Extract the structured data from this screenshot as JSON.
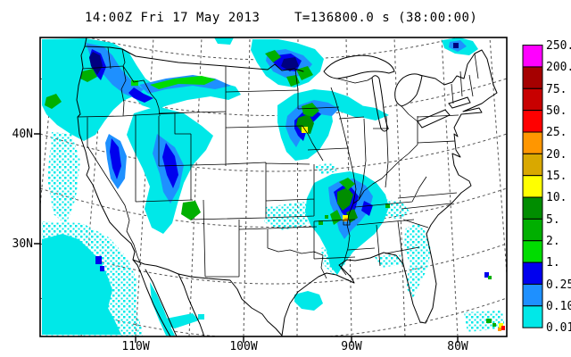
{
  "title": {
    "datetime": "14:00Z Fri 17 May 2013",
    "timer": "T=136800.0 s (38:00:00)"
  },
  "axes": {
    "lat": [
      {
        "label": "40N"
      },
      {
        "label": "30N"
      }
    ],
    "lon": [
      {
        "label": "110W"
      },
      {
        "label": "100W"
      },
      {
        "label": "90W"
      },
      {
        "label": "80W"
      }
    ]
  },
  "colorbar": {
    "labels": [
      "250.",
      "200.",
      "75.",
      "50.",
      "25.",
      "20.",
      "15.",
      "10.",
      "5.",
      "2.",
      "1.",
      "0.25",
      "0.10",
      "0.01"
    ],
    "colors": [
      "#FF00FF",
      "#A50000",
      "#C80000",
      "#FF0000",
      "#FF9600",
      "#D9A800",
      "#FFFF00",
      "#008D00",
      "#00AF00",
      "#00DC00",
      "#0000EE",
      "#1E90FF",
      "#00E8E8"
    ]
  },
  "precip_field": {
    "units_note": "precipitation shading levels match colorbar",
    "layers": [
      {
        "name": "speckle-0.01",
        "fill": "pattern:spk",
        "paths": [
          "M47 248 L92 250 L122 266 L142 288 L154 315 L152 345 L160 372 L160 377 L47 377 Z",
          "M58 148 L80 150 L90 180 L85 222 L74 252 L60 240 L53 200 Z",
          "M298 232 L340 226 L352 238 L345 252 L316 258 L296 249 Z",
          "M360 278 L380 272 L388 296 L374 308 L362 296 Z",
          "M424 222 L450 226 L460 238 L446 246 L427 240 Z",
          "M455 255 L470 250 L479 263 L483 281 L479 301 L470 319 L462 336 L455 321 L459 296 L452 272 Z",
          "M520 350 L563 348 L566 368 L524 372 Z",
          "M420 288 L448 284 L452 296 L428 300 Z",
          "M352 186 L372 182 L378 192 L360 196 Z"
        ]
      },
      {
        "name": "rain-0.01",
        "fill": "#00E8E8",
        "paths": [
          "M47 44 L96 43 L126 48 L144 58 L153 73 L163 88 L173 95 L192 91 L216 87 L242 91 L264 97 L270 106 L256 112 L236 108 L210 112 L188 118 L174 123 L159 118 L149 108 L138 113 L127 123 L117 136 L107 151 L94 158 L79 150 L64 140 L52 128 L47 118 Z",
          "M150 127 L176 119 L206 127 L226 141 L239 152 L231 168 L216 185 L206 205 L199 228 L193 250 L183 262 L170 255 L162 234 L168 209 L160 189 L150 169 L142 151 Z",
          "M283 44 L312 44 L332 48 L353 55 L363 66 L359 80 L346 92 L330 98 L312 95 L298 85 L288 70 L281 56 Z",
          "M311 118 L330 105 L352 100 L372 102 L390 108 L406 118 L413 128 L400 132 L384 126 L371 122 L373 136 L368 152 L358 168 L345 178 L331 180 L321 170 L315 154 L311 137 Z",
          "M392 116 L421 121 L436 129 L421 135 L399 130 Z",
          "M352 205 L372 195 L392 192 L408 196 L422 205 L432 218 L436 232 L430 248 L420 262 L408 272 L396 282 L386 295 L378 308 L370 298 L366 280 L358 265 L348 252 L342 238 L344 222 Z",
          "M495 45 L515 42 L530 46 L536 55 L526 62 L510 60 L498 54 Z",
          "M47 268 L70 262 L88 268 L101 280 L112 292 L120 308 L126 325 L121 345 L129 360 L136 375 L47 375 Z",
          "M330 330 L345 326 L358 330 L362 340 L352 348 L338 346 L330 338 Z",
          "M186 357 L216 351 L223 359 L196 368 L186 365 Z",
          "M168 316 L176 330 L184 348 L190 364 L196 376 L186 376 L178 358 L170 338 Z",
          "M240 42 L262 42 L258 50 L244 49 Z",
          "M222 352 L229 352 L229 358 L222 358 Z"
        ]
      },
      {
        "name": "rain-0.10",
        "fill": "#1E90FF",
        "paths": [
          "M96 48 L116 52 L126 62 L136 78 L149 92 L161 100 L151 110 L139 105 L126 95 L113 80 L101 62 Z",
          "M122 150 L135 158 L142 175 L140 200 L132 212 L124 200 L120 178 L118 160 Z",
          "M156 95 L186 88 L216 84 L241 88 L259 96 L241 100 L216 96 L186 100 L166 105 Z",
          "M176 150 L196 165 L206 185 L201 210 L191 228 L183 215 L179 195 L171 172 Z",
          "M300 58 L320 55 L340 62 L350 72 L340 84 L322 88 L306 80 L298 68 Z",
          "M322 130 L335 118 L352 112 L368 115 L380 122 L372 130 L358 128 L346 135 L339 152 L332 165 L325 155 L320 142 Z",
          "M368 210 L382 202 L396 200 L410 208 L418 220 L414 235 L404 248 L394 258 L386 268 L380 258 L376 242 L370 228 Z",
          "M504 47 L516 45 L523 52 L513 58 L503 53 Z"
        ]
      },
      {
        "name": "rain-0.25",
        "fill": "#0000EE",
        "paths": [
          "M103 55 L113 60 L119 75 L113 90 L104 80 L100 65 Z",
          "M125 155 L133 165 L136 186 L131 201 L126 188 L123 170 Z",
          "M150 98 L161 105 L172 110 L162 115 L150 110 L144 104 Z",
          "M186 160 L196 175 L200 196 L194 211 L187 196 L182 176 Z",
          "M310 62 L326 60 L338 68 L332 80 L316 78 L306 70 Z",
          "M330 135 L340 125 L352 122 L360 128 L352 136 L345 142 L340 158 L334 152 L330 144 Z",
          "M374 215 L384 208 L394 210 L402 220 L398 235 L390 246 L383 238 L378 228 Z",
          "M408 225 L418 230 L414 242 L405 236 Z",
          "M107 287 L114 287 L114 296 L107 296 Z M112 298 L117 298 L117 304 L112 304 Z",
          "M543 305 L548 305 L548 311 L543 311 Z"
        ]
      },
      {
        "name": "rain-core-dark",
        "fill": "#000080",
        "paths": [
          "M104 58 L112 62 L115 74 L109 84 L102 74 L100 64 Z",
          "M318 66 L331 64 L335 74 L325 80 L315 74 Z",
          "M508 48 L514 48 L514 54 L508 54 Z"
        ]
      },
      {
        "name": "rain-5",
        "fill": "#008D00",
        "paths": [
          "M334 132 L346 128 L352 138 L348 150 L338 148 L332 140 Z",
          "M378 215 L389 210 L396 218 L392 230 L384 236 L378 228 Z",
          "M388 238 L397 234 L401 244 L392 250 Z"
        ]
      },
      {
        "name": "rain-2",
        "fill": "#00AF00",
        "paths": [
          "M92 80 L104 77 L109 86 L98 92 L90 88 Z",
          "M52 109 L63 105 L69 114 L58 122 L50 118 Z",
          "M205 227 L219 225 L225 238 L214 247 L203 240 Z",
          "M297 60 L308 56 L315 64 L306 70 Z",
          "M332 78 L345 74 L351 84 L338 90 Z",
          "M321 86 L332 84 L336 93 L326 97 Z",
          "M338 119 L350 115 L358 124 L350 131 L340 128 Z",
          "M380 204 L390 199 L398 206 L390 213 Z",
          "M370 240 L378 235 L383 246 L374 252 Z",
          "M545 357 L551 357 L551 362 L545 362 Z M552 362 L556 362 L556 366 L552 366 Z",
          "M547 309 L551 309 L551 313 L547 313 Z",
          "M432 228 L437 228 L437 233 L432 233 Z M357 247 L362 247 L362 252 L357 252 Z M364 241 L368 241 L368 245 L364 245 Z"
        ]
      },
      {
        "name": "rain-1",
        "fill": "#00DC00",
        "paths": [
          "M168 95 L196 88 L226 85 L242 89 L229 95 L200 94 L178 100 Z",
          "M147 90 L155 90 L155 96 L147 96 Z"
        ]
      },
      {
        "name": "rain-10",
        "fill": "#FFFF00",
        "paths": [
          "M338 142 L345 142 L345 149 L338 149 Z",
          "M384 241 L390 241 L390 248 L384 248 Z",
          "M559 362 L564 362 L564 367 L559 367 Z"
        ]
      },
      {
        "name": "rain-20",
        "fill": "#FF9600",
        "paths": [
          "M386 244 L390 244 L390 248 L386 248 Z",
          "M558 367 L562 367 L562 371 L558 371 Z"
        ]
      },
      {
        "name": "rain-25",
        "fill": "#FF0000",
        "paths": [
          "M562 365 L566 365 L566 370 L562 370 Z"
        ]
      }
    ]
  }
}
